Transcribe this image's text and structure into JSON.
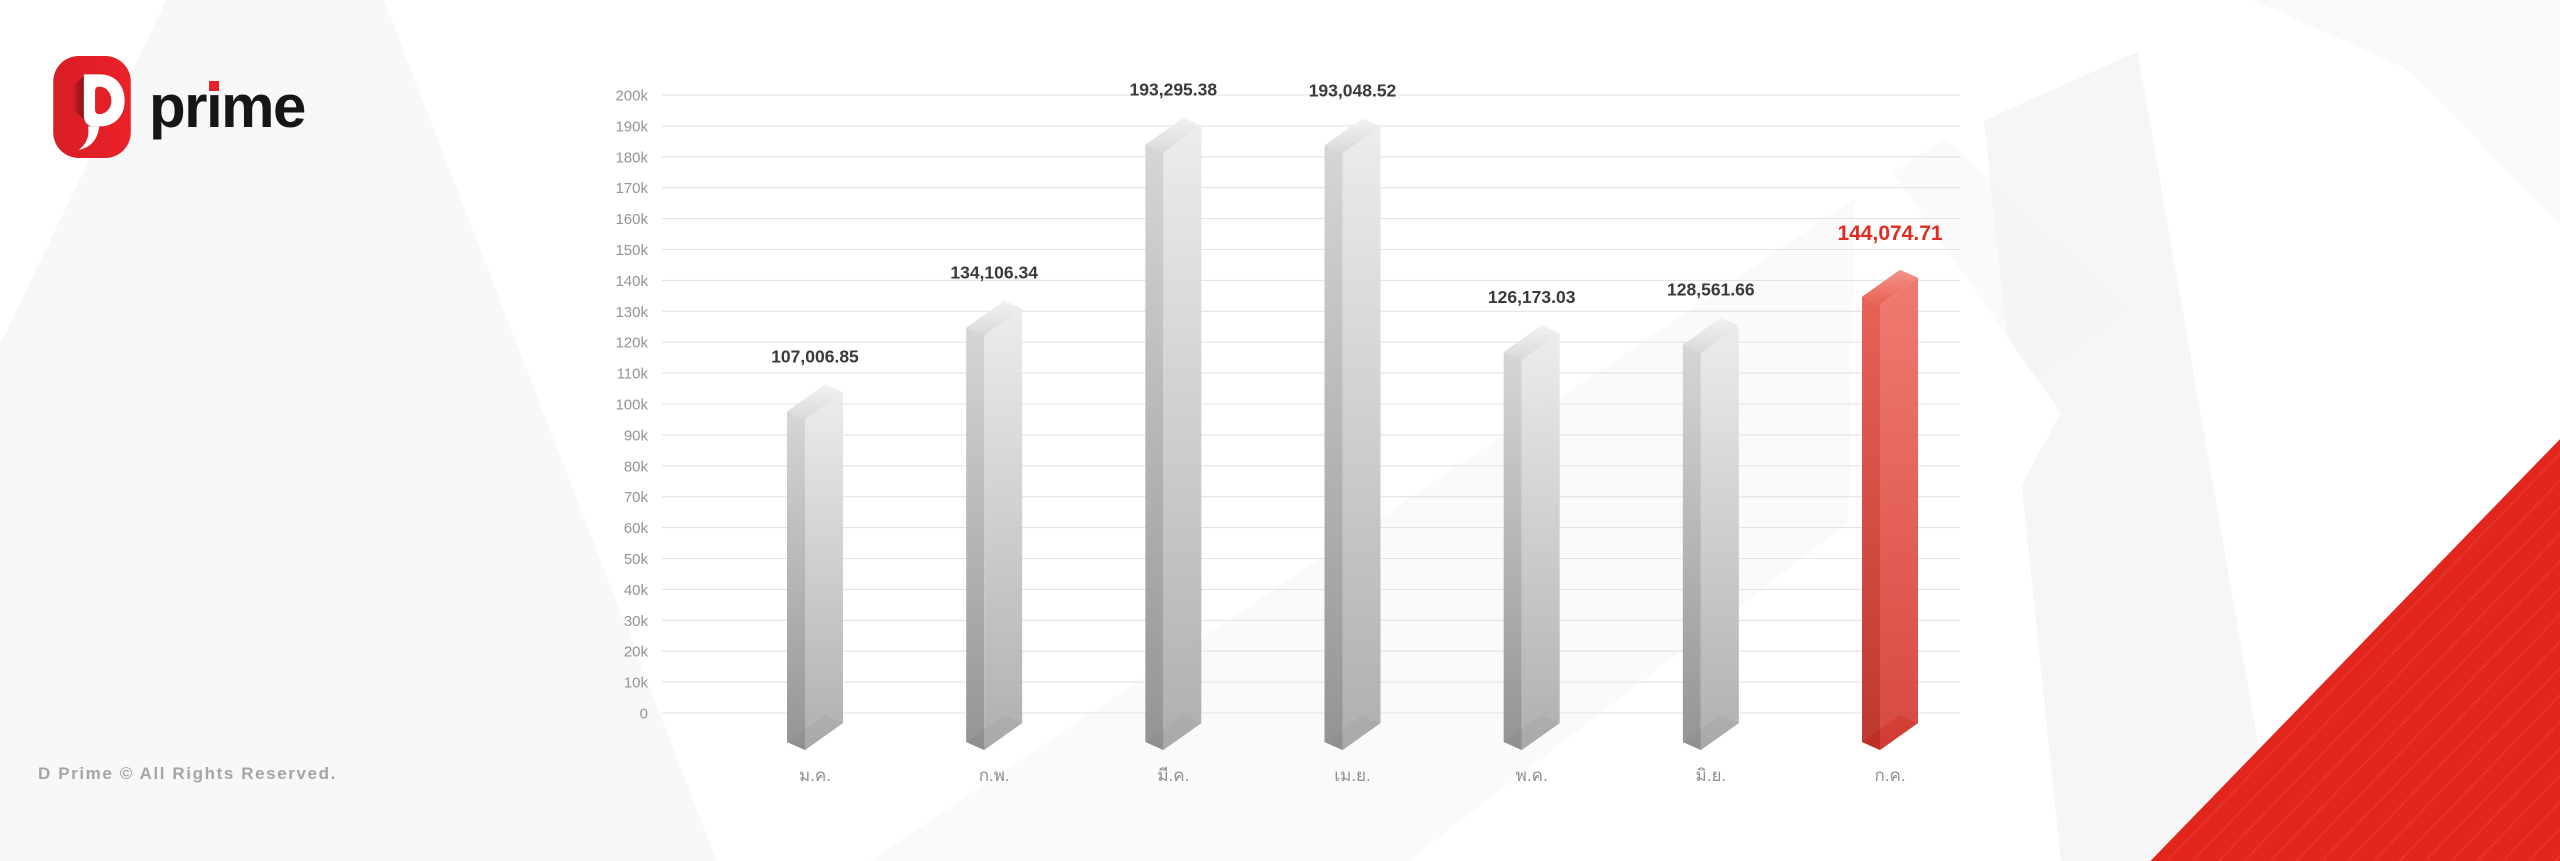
{
  "brand": {
    "logo_text_pre": "pr",
    "logo_text_i": "ı",
    "logo_text_post": "me"
  },
  "footer": {
    "copyright": "D Prime © All Rights Reserved."
  },
  "colors": {
    "accent_red": "#e2251d",
    "grid": "#e3e3e3",
    "axis_label": "#949494",
    "value_label": "#3a3a3a",
    "value_label_highlight": "#e02b22",
    "bar_gray": {
      "top": [
        "#f2f2f2",
        "#d9d9d9"
      ],
      "front": [
        "#ebebeb",
        "#a9a9a9"
      ],
      "side": [
        "#d4d4d4",
        "#8e8e8e"
      ],
      "bottom": "#9d9d9d"
    },
    "bar_red": {
      "top": [
        "#f4958b",
        "#ea6054"
      ],
      "front": [
        "#ef7166",
        "#d33b31"
      ],
      "side": [
        "#e65a4d",
        "#bb2d24"
      ],
      "bottom": "#c0382e"
    }
  },
  "chart_data": {
    "type": "bar",
    "title": "",
    "xlabel": "",
    "ylabel": "",
    "categories": [
      "ม.ค.",
      "ก.พ.",
      "มี.ค.",
      "เม.ย.",
      "พ.ค.",
      "มิ.ย.",
      "ก.ค."
    ],
    "values": [
      107006.85,
      134106.34,
      193295.38,
      193048.52,
      126173.03,
      128561.66,
      144074.71
    ],
    "value_labels": [
      "107,006.85",
      "134,106.34",
      "193,295.38",
      "193,048.52",
      "126,173.03",
      "128,561.66",
      "144,074.71"
    ],
    "highlight_index": 6,
    "ylim": [
      0,
      200000
    ],
    "y_tick_labels": [
      "200k",
      "190k",
      "180k",
      "170k",
      "160k",
      "150k",
      "140k",
      "130k",
      "120k",
      "110k",
      "100k",
      "90k",
      "80k",
      "70k",
      "60k",
      "50k",
      "40k",
      "30k",
      "20k",
      "10k",
      "0"
    ],
    "grid": true,
    "legend_position": "none",
    "style": "3d-columns, highlighted last column in red"
  }
}
